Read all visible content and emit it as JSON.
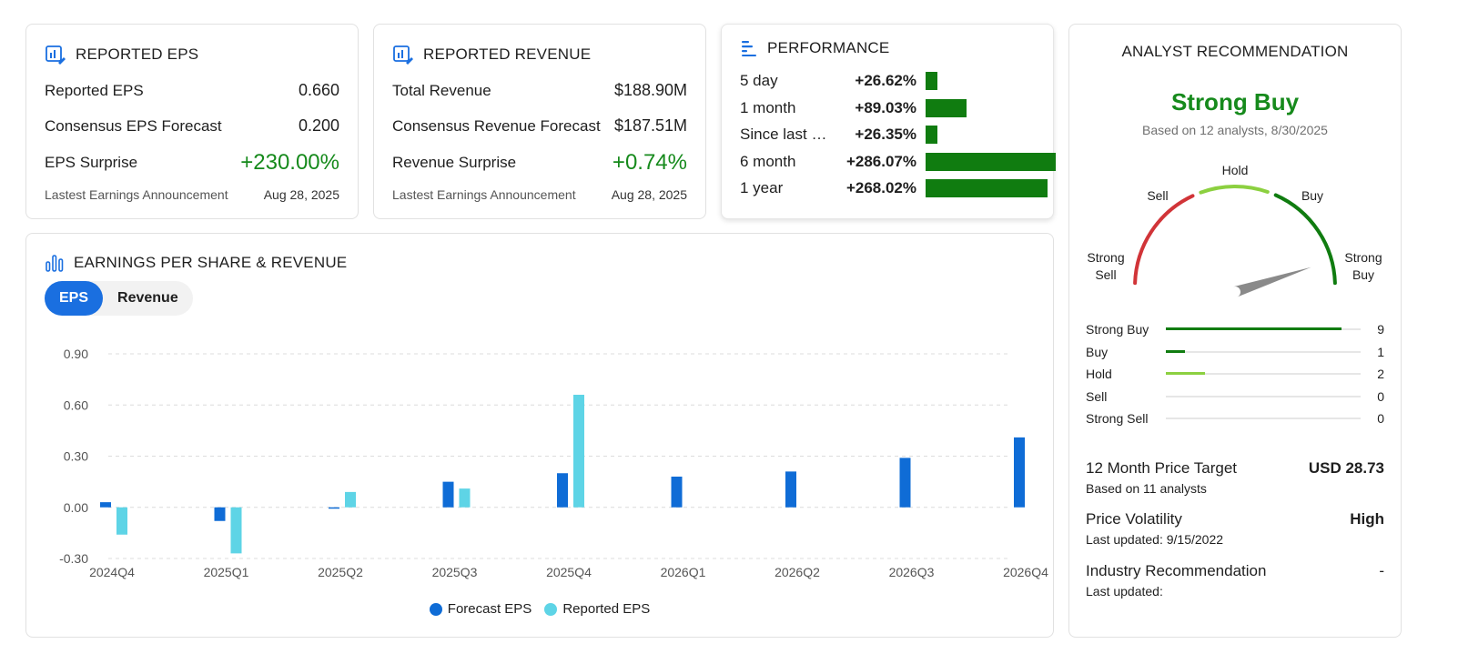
{
  "eps_card": {
    "title": "REPORTED EPS",
    "rows": [
      {
        "label": "Reported EPS",
        "value": "0.660"
      },
      {
        "label": "Consensus EPS Forecast",
        "value": "0.200"
      },
      {
        "label": "EPS Surprise",
        "value": "+230.00%"
      }
    ],
    "footer_label": "Lastest Earnings Announcement",
    "footer_date": "Aug 28, 2025"
  },
  "revenue_card": {
    "title": "REPORTED REVENUE",
    "rows": [
      {
        "label": "Total Revenue",
        "value": "$188.90M"
      },
      {
        "label": "Consensus Revenue Forecast",
        "value": "$187.51M"
      },
      {
        "label": "Revenue Surprise",
        "value": "+0.74%"
      }
    ],
    "footer_label": "Lastest Earnings Announcement",
    "footer_date": "Aug 28, 2025"
  },
  "performance": {
    "title": "PERFORMANCE",
    "rows": [
      {
        "label": "5 day",
        "value": "+26.62%",
        "pct": 26.62
      },
      {
        "label": "1 month",
        "value": "+89.03%",
        "pct": 89.03
      },
      {
        "label": "Since last e...",
        "value": "+26.35%",
        "pct": 26.35
      },
      {
        "label": "6 month",
        "value": "+286.07%",
        "pct": 286.07
      },
      {
        "label": "1 year",
        "value": "+268.02%",
        "pct": 268.02
      }
    ],
    "bar_color": "#107c10"
  },
  "earnings_chart": {
    "title": "EARNINGS PER SHARE & REVENUE",
    "tabs": [
      {
        "label": "EPS",
        "active": true
      },
      {
        "label": "Revenue",
        "active": false
      }
    ],
    "legend": [
      {
        "name": "Forecast EPS",
        "color": "#0f6cd6"
      },
      {
        "name": "Reported EPS",
        "color": "#5ed4e6"
      }
    ]
  },
  "chart_data": {
    "type": "bar",
    "categories": [
      "2024Q4",
      "2025Q1",
      "2025Q2",
      "2025Q3",
      "2025Q4",
      "2026Q1",
      "2026Q2",
      "2026Q3",
      "2026Q4"
    ],
    "series": [
      {
        "name": "Forecast EPS",
        "color": "#0f6cd6",
        "values": [
          0.03,
          -0.08,
          0.0,
          0.15,
          0.2,
          0.18,
          0.21,
          0.29,
          0.41
        ]
      },
      {
        "name": "Reported EPS",
        "color": "#5ed4e6",
        "values": [
          -0.16,
          -0.27,
          0.09,
          0.11,
          0.66,
          null,
          null,
          null,
          null
        ]
      }
    ],
    "yticks": [
      "0.90",
      "0.60",
      "0.30",
      "0.00",
      "-0.30"
    ],
    "ylim": [
      -0.3,
      0.9
    ],
    "grid": true,
    "legend_position": "bottom"
  },
  "analyst": {
    "title": "ANALYST RECOMMENDATION",
    "rating": "Strong Buy",
    "based_on": "Based on 12 analysts, 8/30/2025",
    "gauge_labels": {
      "strong_sell": [
        "Strong",
        "Sell"
      ],
      "sell": "Sell",
      "hold": "Hold",
      "buy": "Buy",
      "strong_buy": [
        "Strong",
        "Buy"
      ]
    },
    "gauge_level": 0.9,
    "gauge_colors": {
      "sell": "#d13438",
      "hold": "#8cd040",
      "buy": "#107c10"
    },
    "breakdown": [
      {
        "label": "Strong Buy",
        "count": "9",
        "n": 9,
        "color": "#107c10"
      },
      {
        "label": "Buy",
        "count": "1",
        "n": 1,
        "color": "#107c10"
      },
      {
        "label": "Hold",
        "count": "2",
        "n": 2,
        "color": "#8cd040"
      },
      {
        "label": "Sell",
        "count": "0",
        "n": 0,
        "color": "#d13438"
      },
      {
        "label": "Strong Sell",
        "count": "0",
        "n": 0,
        "color": "#d13438"
      }
    ],
    "price_target_label": "12 Month Price Target",
    "price_target_value": "USD 28.73",
    "price_target_sub": "Based on 11 analysts",
    "volatility_label": "Price Volatility",
    "volatility_value": "High",
    "volatility_sub": "Last updated: 9/15/2022",
    "industry_label": "Industry Recommendation",
    "industry_value": "-",
    "industry_sub": "Last updated:"
  }
}
